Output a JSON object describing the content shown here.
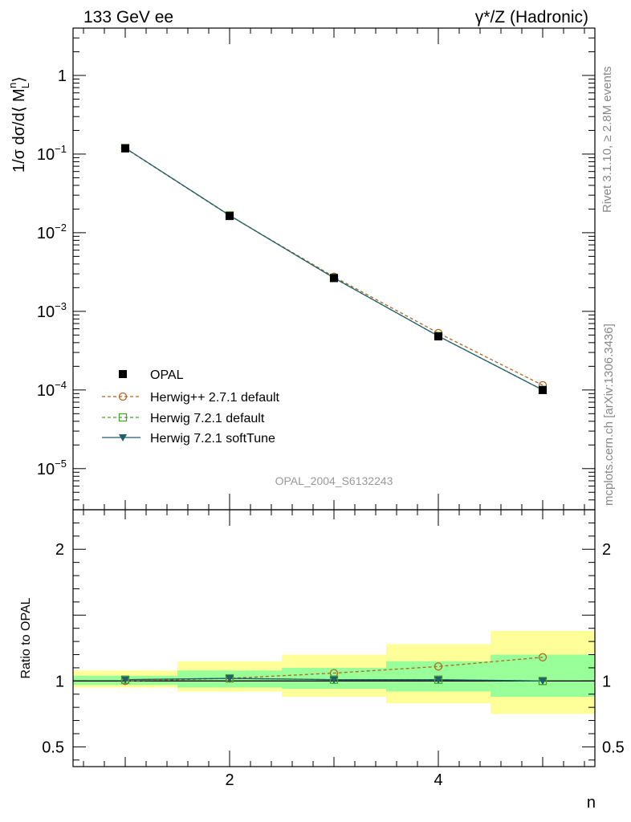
{
  "header": {
    "left_title": "133 GeV ee",
    "right_title": "γ*/Z (Hadronic)"
  },
  "side_text": {
    "rivet": "Rivet 3.1.10, ≥ 2.8M events",
    "mcplots": "mcplots.cern.ch [arXiv:1306.3436]"
  },
  "analysis_label": "OPAL_2004_S6132243",
  "colors": {
    "data": "#000000",
    "herwigpp": "#b5651d",
    "herwig_default": "#4aa02c",
    "herwig_soft": "#1f5f6e",
    "band_outer": "#ffff99",
    "band_inner": "#99ff99"
  },
  "chart_data": [
    {
      "type": "scatter",
      "panel": "main",
      "ylabel": "1/σ dσ/d⟨ M_L^n⟩",
      "yscale": "log",
      "ylim": [
        3e-06,
        4
      ],
      "xlim": [
        0.5,
        5.5
      ],
      "y_ticks": [
        {
          "value": 1,
          "label": "1"
        },
        {
          "value": 0.1,
          "base": "10",
          "exp": "−1"
        },
        {
          "value": 0.01,
          "base": "10",
          "exp": "−2"
        },
        {
          "value": 0.001,
          "base": "10",
          "exp": "−3"
        },
        {
          "value": 0.0001,
          "base": "10",
          "exp": "−4"
        },
        {
          "value": 1e-05,
          "base": "10",
          "exp": "−5"
        }
      ],
      "x": [
        1,
        2,
        3,
        4,
        5
      ],
      "series": [
        {
          "name": "OPAL",
          "style": "data",
          "values": [
            0.118,
            0.0163,
            0.00265,
            0.00048,
            0.0001
          ]
        },
        {
          "name": "Herwig++ 2.7.1 default",
          "style": "herwigpp",
          "values": [
            0.1185,
            0.0165,
            0.00275,
            0.00053,
            0.000115
          ]
        },
        {
          "name": "Herwig 7.2.1 default",
          "style": "herwig_default",
          "values": [
            0.1195,
            0.0166,
            0.00266,
            0.000485,
            0.0001
          ]
        },
        {
          "name": "Herwig 7.2.1 softTune",
          "style": "herwig_soft",
          "values": [
            0.1195,
            0.0166,
            0.00266,
            0.000485,
            0.0001
          ]
        }
      ],
      "legend_position": "lower-left"
    },
    {
      "type": "line",
      "panel": "ratio",
      "ylabel": "Ratio to OPAL",
      "xlabel": "n",
      "ylim": [
        0.35,
        2.3
      ],
      "xlim": [
        0.5,
        5.5
      ],
      "y_ticks": [
        {
          "value": 2,
          "label": "2"
        },
        {
          "value": 1,
          "label": "1"
        },
        {
          "value": 0.5,
          "label": "0.5"
        }
      ],
      "x_ticks": [
        {
          "value": 2,
          "label": "2"
        },
        {
          "value": 4,
          "label": "4"
        }
      ],
      "x": [
        1,
        2,
        3,
        4,
        5
      ],
      "bands": {
        "outer": [
          [
            0.95,
            1.08
          ],
          [
            0.92,
            1.15
          ],
          [
            0.88,
            1.2
          ],
          [
            0.83,
            1.28
          ],
          [
            0.75,
            1.38
          ]
        ],
        "inner": [
          [
            0.97,
            1.04
          ],
          [
            0.95,
            1.08
          ],
          [
            0.94,
            1.1
          ],
          [
            0.92,
            1.15
          ],
          [
            0.88,
            1.2
          ]
        ]
      },
      "series": [
        {
          "name": "Herwig++ 2.7.1 default",
          "style": "herwigpp",
          "values": [
            1.0,
            1.02,
            1.06,
            1.11,
            1.18
          ]
        },
        {
          "name": "Herwig 7.2.1 default",
          "style": "herwig_default",
          "values": [
            1.01,
            1.02,
            1.01,
            1.01,
            1.0
          ]
        },
        {
          "name": "Herwig 7.2.1 softTune",
          "style": "herwig_soft",
          "values": [
            1.01,
            1.02,
            1.01,
            1.01,
            1.0
          ]
        }
      ]
    }
  ]
}
